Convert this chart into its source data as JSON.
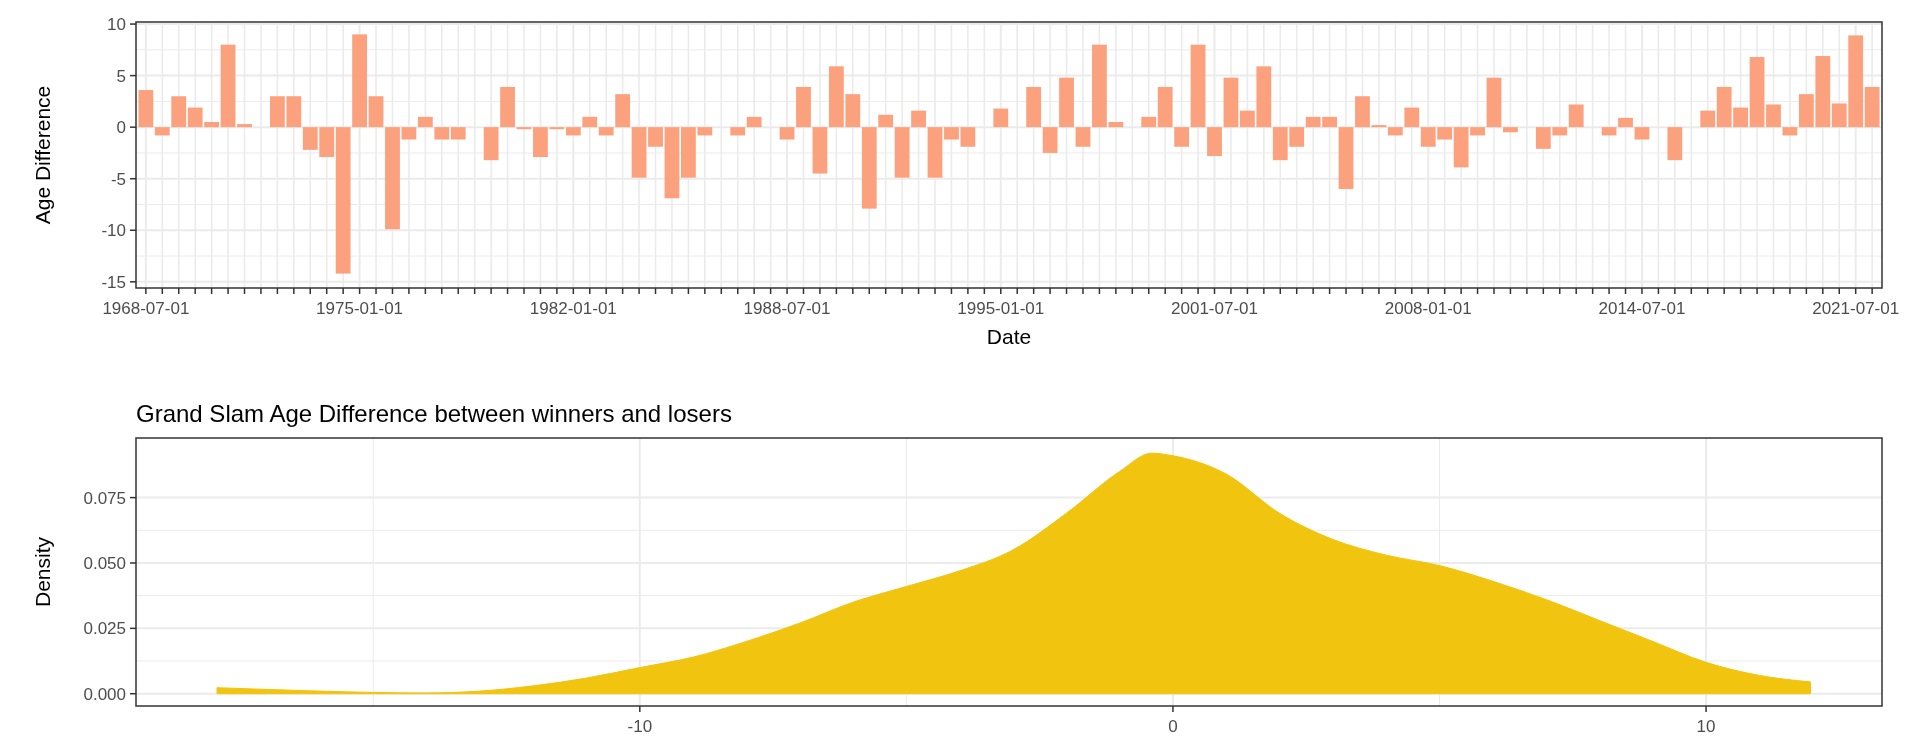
{
  "chart_data": [
    {
      "type": "bar",
      "xlabel": "Date",
      "ylabel": "Age Difference",
      "color": "#fca17d",
      "grid": true,
      "categories": [
        "1968-07-01",
        null,
        null,
        null,
        null,
        null,
        null,
        null,
        null,
        null,
        null,
        null,
        null,
        "1975-01-01",
        null,
        null,
        null,
        null,
        null,
        null,
        null,
        null,
        null,
        null,
        null,
        null,
        "1982-01-01",
        null,
        null,
        null,
        null,
        null,
        null,
        null,
        null,
        null,
        null,
        null,
        null,
        "1988-07-01",
        null,
        null,
        null,
        null,
        null,
        null,
        null,
        null,
        null,
        null,
        null,
        null,
        "1995-01-01",
        null,
        null,
        null,
        null,
        null,
        null,
        null,
        null,
        null,
        null,
        null,
        null,
        "2001-07-01",
        null,
        null,
        null,
        null,
        null,
        null,
        null,
        null,
        null,
        null,
        null,
        null,
        "2008-01-01",
        null,
        null,
        null,
        null,
        null,
        null,
        null,
        null,
        null,
        null,
        null,
        null,
        "2014-07-01",
        null,
        null,
        null,
        null,
        null,
        null,
        null,
        null,
        null,
        null,
        null,
        null,
        "2021-07-01",
        null
      ],
      "values": [
        3.6,
        -0.8,
        3,
        1.9,
        0.5,
        8,
        0.3,
        0,
        3,
        3,
        -2.2,
        -2.9,
        -14.2,
        9,
        3,
        -9.9,
        -1.2,
        1,
        -1.2,
        -1.2,
        0,
        -3.2,
        3.9,
        -0.2,
        -2.9,
        -0.2,
        -0.8,
        1,
        -0.8,
        3.2,
        -4.9,
        -1.9,
        -6.9,
        -4.9,
        -0.8,
        0,
        -0.8,
        1,
        0,
        -1.2,
        3.9,
        -4.5,
        5.9,
        3.2,
        -7.9,
        1.2,
        -4.9,
        1.6,
        -4.9,
        -1.2,
        -1.9,
        0,
        1.8,
        0,
        3.9,
        -2.5,
        4.8,
        -1.9,
        8,
        0.5,
        0,
        1,
        3.9,
        -1.9,
        8,
        -2.8,
        4.8,
        1.6,
        5.9,
        -3.2,
        -1.9,
        1,
        1,
        -6,
        3,
        0.2,
        -0.8,
        1.9,
        -1.9,
        -1.2,
        -3.9,
        -0.8,
        4.8,
        -0.5,
        0,
        -2.1,
        -0.8,
        2.2,
        0,
        -0.8,
        0.9,
        -1.2,
        0,
        -3.2,
        0,
        1.6,
        3.9,
        1.9,
        6.8,
        2.2,
        -0.8,
        3.2,
        6.9,
        2.3,
        8.9,
        3.9
      ],
      "ylim": [
        -15.6,
        10.2
      ],
      "yticks": [
        -15,
        -10,
        -5,
        0,
        5,
        10
      ]
    },
    {
      "type": "area",
      "title": "Grand Slam Age Difference between winners and losers",
      "ylabel": "Density",
      "color": "#f1c40f",
      "grid": true,
      "x": [
        -17.93,
        -16,
        -15,
        -14,
        -13,
        -12,
        -11,
        -10,
        -9,
        -8,
        -7,
        -6,
        -5,
        -4,
        -3,
        -2,
        -1,
        -0.4,
        0,
        1,
        2,
        3,
        4,
        5,
        6,
        7,
        8,
        9,
        10,
        11,
        11.96
      ],
      "values": [
        0.0023,
        0.001,
        0.0005,
        0.0003,
        0.001,
        0.003,
        0.006,
        0.01,
        0.014,
        0.02,
        0.027,
        0.035,
        0.041,
        0.047,
        0.055,
        0.069,
        0.085,
        0.092,
        0.091,
        0.084,
        0.069,
        0.059,
        0.053,
        0.049,
        0.043,
        0.036,
        0.028,
        0.02,
        0.012,
        0.007,
        0.0045
      ],
      "xlim": [
        -19.45,
        13.3
      ],
      "xticks": [
        -10,
        0,
        10
      ],
      "ylim": [
        -0.0047,
        0.0978
      ],
      "yticks": [
        {
          "value": 0,
          "label": "0.000"
        },
        {
          "value": 0.025,
          "label": "0.025"
        },
        {
          "value": 0.05,
          "label": "0.050"
        },
        {
          "value": 0.075,
          "label": "0.075"
        }
      ]
    }
  ]
}
